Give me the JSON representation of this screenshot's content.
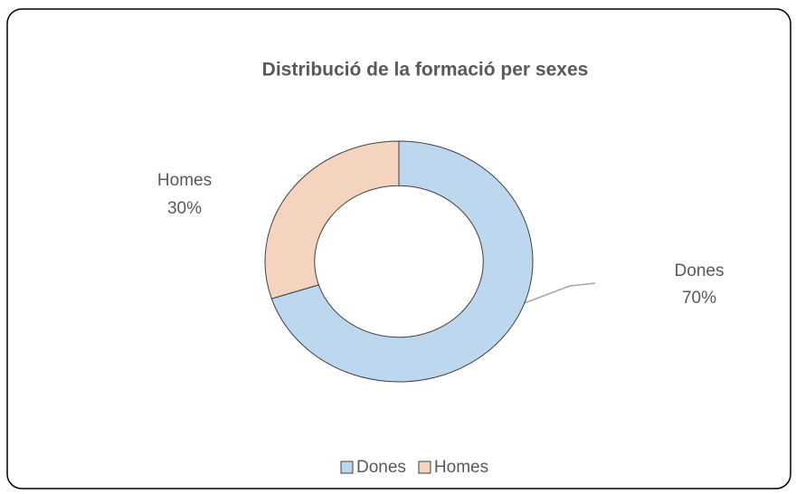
{
  "chart_data": {
    "type": "donut",
    "title": "Distribució de la formació  per sexes",
    "categories": [
      "Dones",
      "Homes"
    ],
    "values": [
      70,
      30
    ],
    "value_labels": [
      "70%",
      "30%"
    ],
    "colors": [
      "#bdd7ee",
      "#f4d3bf"
    ],
    "legend": "bottom"
  }
}
